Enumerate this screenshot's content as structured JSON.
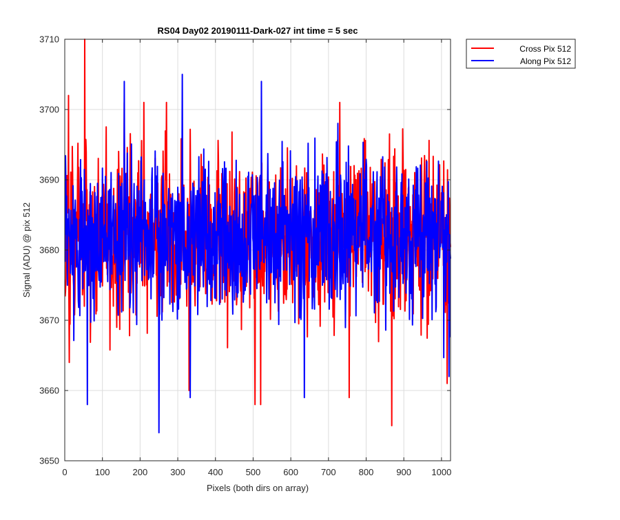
{
  "chart_data": {
    "type": "line",
    "title": "RS04 Day02 20190111-Dark-027 int time = 5 sec",
    "xlabel": "Pixels (both dirs on array)",
    "ylabel": "Signal (ADU) @ pix 512",
    "xlim": [
      0,
      1024
    ],
    "ylim": [
      3650,
      3710
    ],
    "x_ticks": [
      0,
      100,
      200,
      300,
      400,
      500,
      600,
      700,
      800,
      900,
      1000
    ],
    "y_ticks": [
      3650,
      3660,
      3670,
      3680,
      3690,
      3700,
      3710
    ],
    "grid": true,
    "legend_position": "outside-top-right",
    "x": "integers 1..1024 (one sample per pixel)",
    "series": [
      {
        "name": "Cross Pix 512",
        "color": "#ff0000",
        "mean": 3682,
        "typical_range": [
          3664,
          3700
        ],
        "notable_points": [
          {
            "x": 10,
            "y": 3702
          },
          {
            "x": 53,
            "y": 3710
          },
          {
            "x": 12,
            "y": 3664
          },
          {
            "x": 158,
            "y": 3701
          },
          {
            "x": 210,
            "y": 3701
          },
          {
            "x": 270,
            "y": 3701
          },
          {
            "x": 330,
            "y": 3660
          },
          {
            "x": 505,
            "y": 3658
          },
          {
            "x": 520,
            "y": 3658
          },
          {
            "x": 730,
            "y": 3701
          },
          {
            "x": 755,
            "y": 3659
          },
          {
            "x": 868,
            "y": 3655
          },
          {
            "x": 1015,
            "y": 3661
          }
        ]
      },
      {
        "name": "Along Pix 512",
        "color": "#0000ff",
        "mean": 3682,
        "typical_range": [
          3666,
          3698
        ],
        "notable_points": [
          {
            "x": 60,
            "y": 3658
          },
          {
            "x": 158,
            "y": 3704
          },
          {
            "x": 250,
            "y": 3654
          },
          {
            "x": 312,
            "y": 3705
          },
          {
            "x": 333,
            "y": 3659
          },
          {
            "x": 522,
            "y": 3704
          },
          {
            "x": 636,
            "y": 3659
          },
          {
            "x": 1020,
            "y": 3662
          }
        ]
      }
    ]
  }
}
